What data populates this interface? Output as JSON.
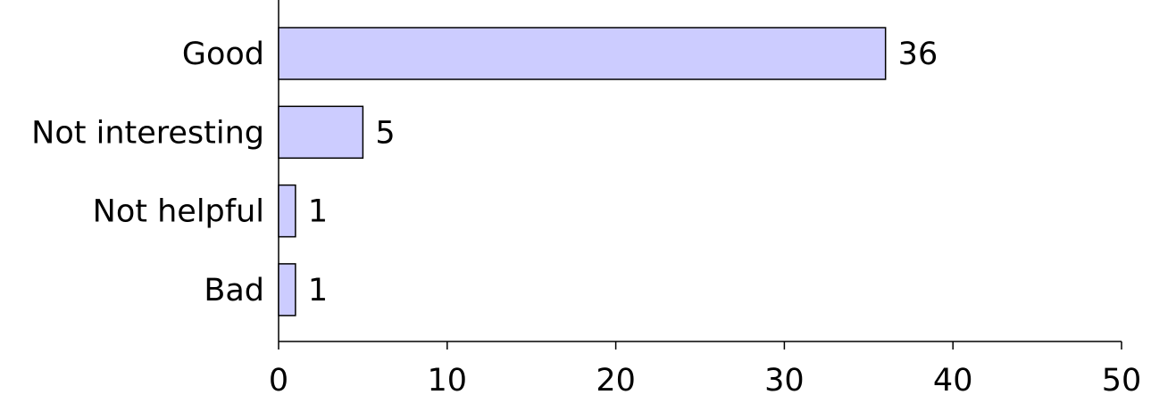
{
  "chart_data": {
    "type": "bar",
    "orientation": "horizontal",
    "categories": [
      "Good",
      "Not interesting",
      "Not helpful",
      "Bad"
    ],
    "values": [
      36,
      5,
      1,
      1
    ],
    "color": "#ccccff",
    "xlim": [
      0,
      50
    ],
    "xticks": [
      0,
      10,
      20,
      30,
      40,
      50
    ],
    "grid": false
  }
}
